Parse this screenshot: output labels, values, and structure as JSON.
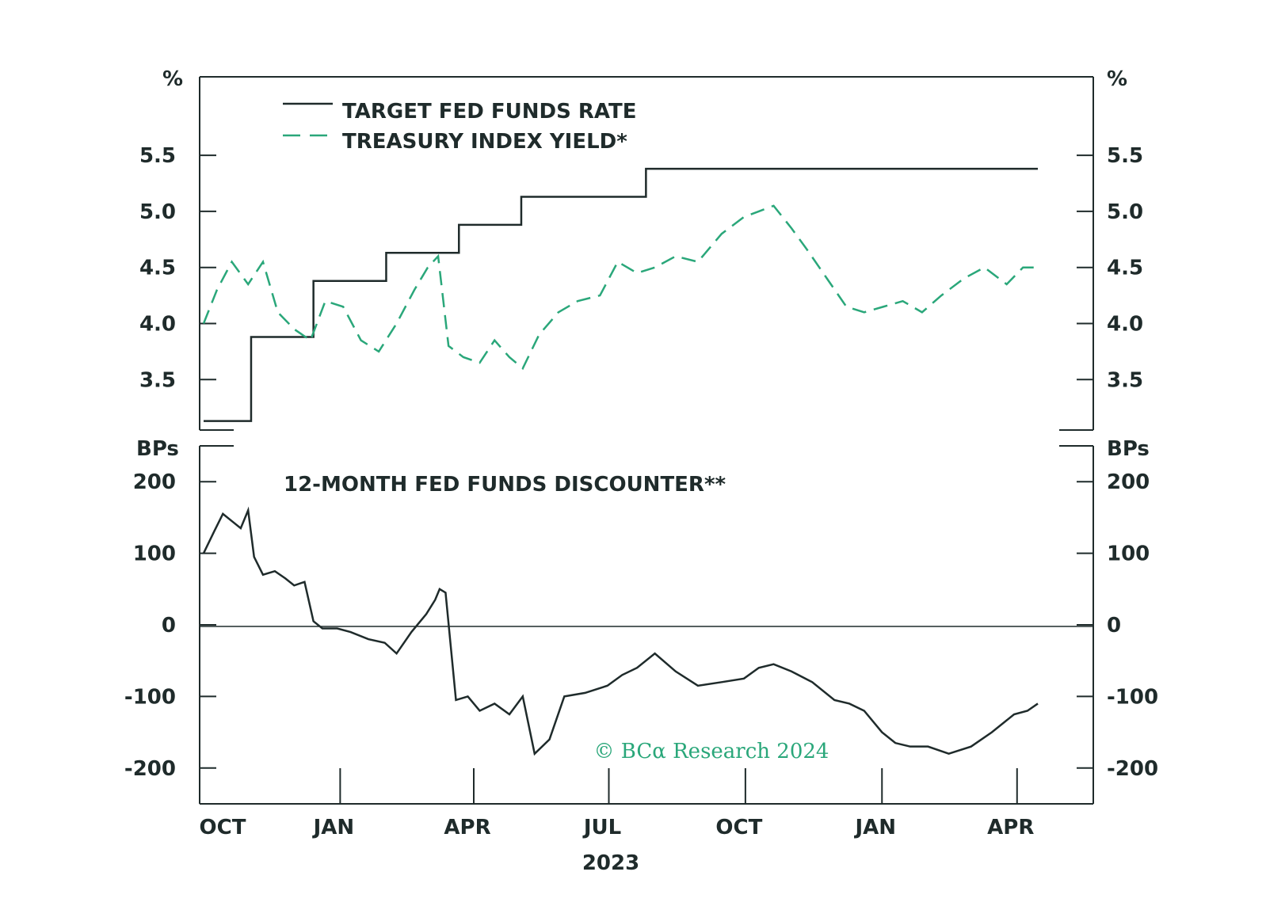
{
  "colors": {
    "ink": "#1f2b2b",
    "accent": "#2aa77a",
    "background": "#ffffff"
  },
  "legend": {
    "target": "TARGET FED FUNDS RATE",
    "treasury": "TREASURY INDEX YIELD*"
  },
  "top_panel": {
    "unit_left": "%",
    "unit_right": "%",
    "ticks": [
      "5.5",
      "5.0",
      "4.5",
      "4.0",
      "3.5"
    ]
  },
  "bottom_panel": {
    "unit_left": "BPs",
    "unit_right": "BPs",
    "title": "12-MONTH FED FUNDS DISCOUNTER**",
    "ticks": [
      "200",
      "100",
      "0",
      "-100",
      "-200"
    ]
  },
  "x_axis": {
    "ticks": [
      "OCT",
      "JAN",
      "APR",
      "JUL",
      "OCT",
      "JAN",
      "APR"
    ],
    "year_label": "2023"
  },
  "watermark": "© BCα Research 2024",
  "chart_data": [
    {
      "type": "line",
      "ylabel": "%",
      "ylim": [
        3.05,
        6.2
      ],
      "x": [
        "2022-10-01",
        "2022-11-02",
        "2022-12-14",
        "2023-02-01",
        "2023-03-22",
        "2023-05-03",
        "2023-07-26",
        "2024-04-15"
      ],
      "series": [
        {
          "name": "TARGET FED FUNDS RATE",
          "step": true,
          "x": [
            "2022-10-01",
            "2022-11-02",
            "2022-12-14",
            "2023-02-01",
            "2023-03-22",
            "2023-05-03",
            "2023-07-26",
            "2024-04-15"
          ],
          "values": [
            3.13,
            3.88,
            4.38,
            4.63,
            4.88,
            5.13,
            5.38,
            5.38
          ]
        },
        {
          "name": "TREASURY INDEX YIELD*",
          "x": [
            "2022-10-01",
            "2022-10-10",
            "2022-10-20",
            "2022-10-31",
            "2022-11-10",
            "2022-11-20",
            "2022-12-01",
            "2022-12-12",
            "2022-12-22",
            "2023-01-03",
            "2023-01-15",
            "2023-01-27",
            "2023-02-08",
            "2023-02-20",
            "2023-03-01",
            "2023-03-08",
            "2023-03-15",
            "2023-03-25",
            "2023-04-05",
            "2023-04-15",
            "2023-04-25",
            "2023-05-04",
            "2023-05-15",
            "2023-05-28",
            "2023-06-10",
            "2023-06-25",
            "2023-07-07",
            "2023-07-20",
            "2023-08-01",
            "2023-08-15",
            "2023-08-30",
            "2023-09-15",
            "2023-09-30",
            "2023-10-10",
            "2023-10-20",
            "2023-11-01",
            "2023-11-12",
            "2023-11-25",
            "2023-12-08",
            "2023-12-20",
            "2024-01-02",
            "2024-01-15",
            "2024-01-28",
            "2024-02-10",
            "2024-02-25",
            "2024-03-10",
            "2024-03-25",
            "2024-04-05",
            "2024-04-15"
          ],
          "values": [
            4.0,
            4.3,
            4.55,
            4.35,
            4.55,
            4.1,
            3.95,
            3.85,
            4.2,
            4.15,
            3.85,
            3.75,
            4.0,
            4.3,
            4.5,
            4.6,
            3.8,
            3.7,
            3.65,
            3.85,
            3.7,
            3.6,
            3.9,
            4.1,
            4.2,
            4.25,
            4.55,
            4.45,
            4.5,
            4.6,
            4.55,
            4.8,
            4.95,
            5.0,
            5.05,
            4.85,
            4.65,
            4.4,
            4.15,
            4.1,
            4.15,
            4.2,
            4.1,
            4.25,
            4.4,
            4.5,
            4.35,
            4.5,
            4.5
          ]
        }
      ]
    },
    {
      "type": "line",
      "title": "12-MONTH FED FUNDS DISCOUNTER**",
      "ylabel": "BPs",
      "ylim": [
        -250,
        250
      ],
      "series": [
        {
          "x": [
            "2022-10-01",
            "2022-10-08",
            "2022-10-14",
            "2022-10-20",
            "2022-10-26",
            "2022-10-31",
            "2022-11-04",
            "2022-11-10",
            "2022-11-18",
            "2022-11-25",
            "2022-12-01",
            "2022-12-08",
            "2022-12-14",
            "2022-12-20",
            "2022-12-30",
            "2023-01-08",
            "2023-01-20",
            "2023-01-31",
            "2023-02-08",
            "2023-02-18",
            "2023-02-28",
            "2023-03-06",
            "2023-03-09",
            "2023-03-13",
            "2023-03-20",
            "2023-03-28",
            "2023-04-05",
            "2023-04-15",
            "2023-04-25",
            "2023-05-04",
            "2023-05-12",
            "2023-05-22",
            "2023-06-01",
            "2023-06-15",
            "2023-06-30",
            "2023-07-10",
            "2023-07-20",
            "2023-08-01",
            "2023-08-15",
            "2023-08-30",
            "2023-09-15",
            "2023-09-30",
            "2023-10-10",
            "2023-10-20",
            "2023-11-01",
            "2023-11-15",
            "2023-11-30",
            "2023-12-10",
            "2023-12-20",
            "2024-01-01",
            "2024-01-10",
            "2024-01-20",
            "2024-02-01",
            "2024-02-15",
            "2024-03-01",
            "2024-03-15",
            "2024-03-30",
            "2024-04-08",
            "2024-04-15"
          ],
          "values": [
            100,
            130,
            155,
            145,
            135,
            160,
            95,
            70,
            75,
            65,
            55,
            60,
            5,
            -5,
            -5,
            -10,
            -20,
            -25,
            -40,
            -10,
            15,
            35,
            50,
            45,
            -105,
            -100,
            -120,
            -110,
            -125,
            -100,
            -180,
            -160,
            -100,
            -95,
            -85,
            -70,
            -60,
            -40,
            -65,
            -85,
            -80,
            -75,
            -60,
            -55,
            -65,
            -80,
            -105,
            -110,
            -120,
            -150,
            -165,
            -170,
            -170,
            -180,
            -170,
            -150,
            -125,
            -120,
            -110
          ]
        }
      ]
    }
  ]
}
